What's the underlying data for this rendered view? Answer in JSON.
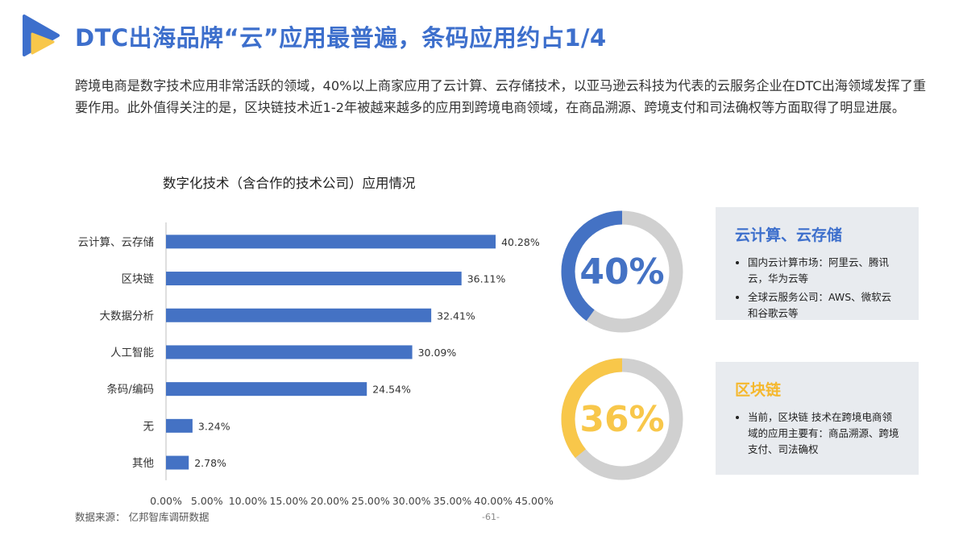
{
  "header": {
    "title": "DTC出海品牌“云”应用最普遍，条码应用约占1/4"
  },
  "intro": "跨境电商是数字技术应用非常活跃的领域，40%以上商家应用了云计算、云存储技术，以亚马逊云科技为代表的云服务企业在DTC出海领域发挥了重要作用。此外值得关注的是，区块链技术近1-2年被越来越多的应用到跨境电商领域，在商品溯源、跨境支付和司法确权等方面取得了明显进展。",
  "chart_data": {
    "type": "bar",
    "orientation": "horizontal",
    "title": "数字化技术（含合作的技术公司）应用情况",
    "categories": [
      "云计算、云存储",
      "区块链",
      "大数据分析",
      "人工智能",
      "条码/编码",
      "无",
      "其他"
    ],
    "values": [
      40.28,
      36.11,
      32.41,
      30.09,
      24.54,
      3.24,
      2.78
    ],
    "value_labels": [
      "40.28%",
      "36.11%",
      "32.41%",
      "30.09%",
      "24.54%",
      "3.24%",
      "2.78%"
    ],
    "xlim": [
      0,
      45
    ],
    "x_ticks": [
      "0.00%",
      "5.00%",
      "10.00%",
      "15.00%",
      "20.00%",
      "25.00%",
      "30.00%",
      "35.00%",
      "40.00%",
      "45.00%"
    ],
    "grid": false,
    "bar_color": "#4472c4"
  },
  "highlights": [
    {
      "percent_label": "40%",
      "fraction": 0.4,
      "color": "#4472c4",
      "track_color": "#d0d0d0",
      "heading": "云计算、云存储",
      "bullets": [
        "国内云计算市场：阿里云、腾讯云，华为云等",
        "全球云服务公司：AWS、微软云和谷歌云等"
      ]
    },
    {
      "percent_label": "36%",
      "fraction": 0.36,
      "color": "#f8c74a",
      "track_color": "#d0d0d0",
      "heading": "区块链",
      "bullets": [
        "当前，区块链 技术在跨境电商领域的应用主要有：商品溯源、跨境支付、司法确权"
      ]
    }
  ],
  "footer": {
    "source": "数据来源： 亿邦智库调研数据",
    "page": "-61-"
  }
}
